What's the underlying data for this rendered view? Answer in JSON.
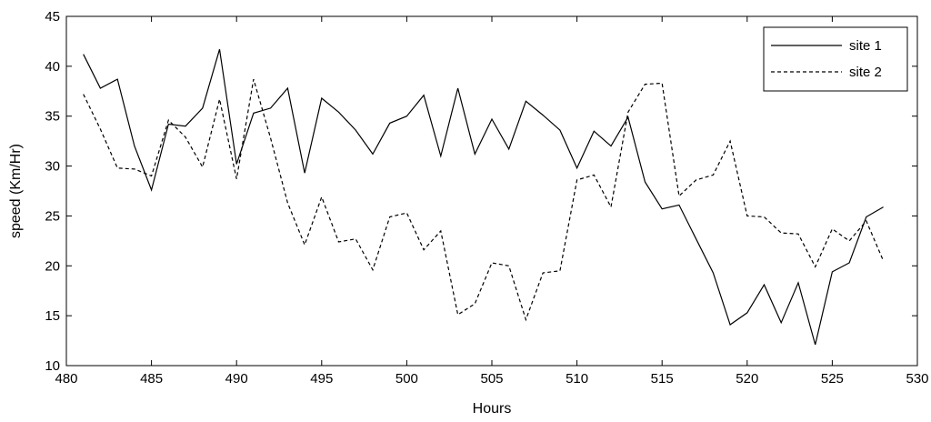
{
  "chart_data": {
    "type": "line",
    "xlabel": "Hours",
    "ylabel": "speed (Km/Hr)",
    "xlim": [
      480,
      530
    ],
    "ylim": [
      10,
      45
    ],
    "xticks": [
      480,
      485,
      490,
      495,
      500,
      505,
      510,
      515,
      520,
      525,
      530
    ],
    "yticks": [
      10,
      15,
      20,
      25,
      30,
      35,
      40,
      45
    ],
    "grid": false,
    "legend_position": "top-right",
    "x": [
      481,
      482,
      483,
      484,
      485,
      486,
      487,
      488,
      489,
      490,
      491,
      492,
      493,
      494,
      495,
      496,
      497,
      498,
      499,
      500,
      501,
      502,
      503,
      504,
      505,
      506,
      507,
      508,
      509,
      510,
      511,
      512,
      513,
      514,
      515,
      516,
      517,
      518,
      519,
      520,
      521,
      522,
      523,
      524,
      525,
      526,
      527,
      528
    ],
    "series": [
      {
        "name": "site 1",
        "style": "solid",
        "color": "#000000",
        "values": [
          41.2,
          37.8,
          38.7,
          32.0,
          27.6,
          34.2,
          34.0,
          35.8,
          41.7,
          30.2,
          35.3,
          35.8,
          37.8,
          29.3,
          36.8,
          35.4,
          33.6,
          31.2,
          34.3,
          35.0,
          37.1,
          31.0,
          37.8,
          31.2,
          34.7,
          31.7,
          36.5,
          35.1,
          33.6,
          29.8,
          33.5,
          32.0,
          34.9,
          28.4,
          25.7,
          26.1,
          22.7,
          19.3,
          14.1,
          15.3,
          18.1,
          14.3,
          18.3,
          12.1,
          19.4,
          20.3,
          24.9,
          25.9
        ]
      },
      {
        "name": "site 2",
        "style": "dashed",
        "color": "#000000",
        "values": [
          37.2,
          33.7,
          29.8,
          29.7,
          29.0,
          34.6,
          32.9,
          29.9,
          36.7,
          28.7,
          38.7,
          32.8,
          26.3,
          22.1,
          26.9,
          22.4,
          22.7,
          19.6,
          24.9,
          25.3,
          21.6,
          23.5,
          15.1,
          16.2,
          20.3,
          20.0,
          14.6,
          19.3,
          19.5,
          28.6,
          29.1,
          25.9,
          35.4,
          38.2,
          38.3,
          27.0,
          28.6,
          29.1,
          32.5,
          25.0,
          24.9,
          23.3,
          23.2,
          19.9,
          23.7,
          22.5,
          24.5,
          20.5
        ]
      }
    ]
  }
}
